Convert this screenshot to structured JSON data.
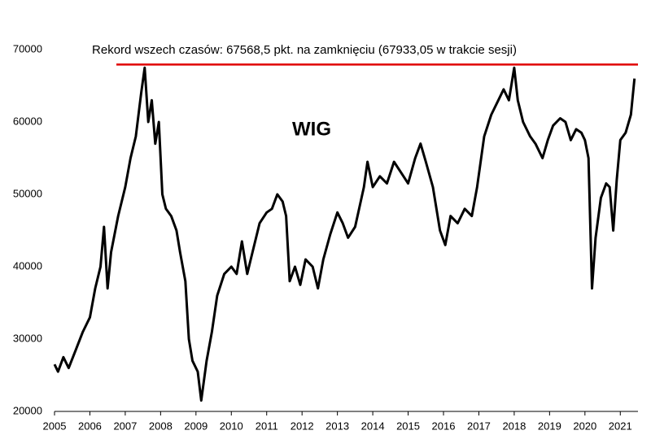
{
  "chart_data": {
    "type": "line",
    "title": "WIG",
    "annotation": "Rekord wszech czasów: 67568,5 pkt. na zamknięciu (67933,05 w trakcie sesji)",
    "record_line": {
      "value": 67933.05,
      "x_start": 2006.75,
      "color": "#e00000"
    },
    "xlim": [
      2005,
      2021.5
    ],
    "xticks": [
      2005,
      2006,
      2007,
      2008,
      2009,
      2010,
      2011,
      2012,
      2013,
      2014,
      2015,
      2016,
      2017,
      2018,
      2019,
      2020,
      2021
    ],
    "ylim": [
      20000,
      70000
    ],
    "yticks": [
      20000,
      30000,
      40000,
      50000,
      60000,
      70000
    ],
    "grid": false,
    "x": [
      2005.0,
      2005.1,
      2005.25,
      2005.4,
      2005.6,
      2005.8,
      2006.0,
      2006.15,
      2006.3,
      2006.4,
      2006.5,
      2006.6,
      2006.8,
      2007.0,
      2007.15,
      2007.3,
      2007.45,
      2007.55,
      2007.65,
      2007.75,
      2007.85,
      2007.95,
      2008.05,
      2008.15,
      2008.3,
      2008.45,
      2008.55,
      2008.7,
      2008.8,
      2008.9,
      2009.05,
      2009.15,
      2009.3,
      2009.45,
      2009.6,
      2009.8,
      2010.0,
      2010.15,
      2010.3,
      2010.45,
      2010.6,
      2010.8,
      2011.0,
      2011.15,
      2011.3,
      2011.45,
      2011.55,
      2011.65,
      2011.8,
      2011.95,
      2012.1,
      2012.3,
      2012.45,
      2012.6,
      2012.8,
      2013.0,
      2013.15,
      2013.3,
      2013.5,
      2013.75,
      2013.85,
      2014.0,
      2014.2,
      2014.4,
      2014.6,
      2014.8,
      2015.0,
      2015.2,
      2015.35,
      2015.5,
      2015.7,
      2015.9,
      2016.05,
      2016.2,
      2016.4,
      2016.6,
      2016.8,
      2016.95,
      2017.15,
      2017.35,
      2017.55,
      2017.7,
      2017.85,
      2018.0,
      2018.1,
      2018.25,
      2018.45,
      2018.6,
      2018.8,
      2018.95,
      2019.1,
      2019.3,
      2019.45,
      2019.6,
      2019.75,
      2019.9,
      2020.0,
      2020.1,
      2020.2,
      2020.3,
      2020.45,
      2020.6,
      2020.7,
      2020.8,
      2020.9,
      2021.0,
      2021.15,
      2021.3,
      2021.4
    ],
    "series": [
      {
        "name": "WIG",
        "color": "#000000",
        "values": [
          26500,
          25500,
          27500,
          26000,
          28500,
          31000,
          33000,
          37000,
          40000,
          45500,
          37000,
          42000,
          47000,
          51000,
          55000,
          58000,
          64000,
          67500,
          60000,
          63000,
          57000,
          60000,
          50000,
          48000,
          47000,
          45000,
          42000,
          38000,
          30000,
          27000,
          25500,
          21500,
          27000,
          31000,
          36000,
          39000,
          40000,
          39000,
          43500,
          39000,
          42000,
          46000,
          47500,
          48000,
          50000,
          49000,
          47000,
          38000,
          40000,
          37500,
          41000,
          40000,
          37000,
          41000,
          44500,
          47500,
          46000,
          44000,
          45500,
          51000,
          54500,
          51000,
          52500,
          51500,
          54500,
          53000,
          51500,
          55000,
          57000,
          54500,
          51000,
          45000,
          43000,
          47000,
          46000,
          48000,
          47000,
          51000,
          58000,
          61000,
          63000,
          64500,
          63000,
          67500,
          63000,
          60000,
          58000,
          57000,
          55000,
          57500,
          59500,
          60500,
          60000,
          57500,
          59000,
          58500,
          57500,
          55000,
          37000,
          44000,
          49500,
          51500,
          51000,
          45000,
          52000,
          57500,
          58500,
          61000,
          66000
        ]
      }
    ]
  }
}
